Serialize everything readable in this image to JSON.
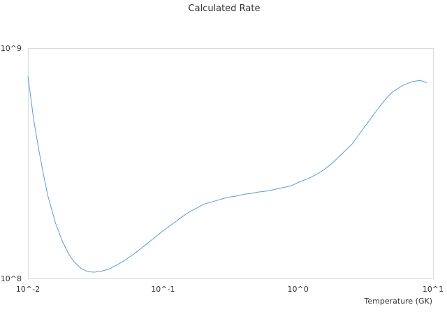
{
  "chart_data": {
    "type": "line",
    "title": "Calculated Rate",
    "xlabel": "Temperature (GK)",
    "ylabel": "",
    "x_scale": "log",
    "y_scale": "log",
    "xlim": [
      0.01,
      10
    ],
    "ylim": [
      100000000,
      1000000000
    ],
    "x_tick_labels": [
      "10^-2",
      "10^-1",
      "10^0",
      "10^1"
    ],
    "y_tick_labels": [
      "10^8",
      "10^9"
    ],
    "grid": false,
    "legend": "none",
    "series": [
      {
        "color": "#5b9bd5",
        "x": [
          0.01,
          0.011,
          0.012,
          0.013,
          0.014,
          0.016,
          0.018,
          0.02,
          0.022,
          0.025,
          0.028,
          0.031,
          0.035,
          0.04,
          0.045,
          0.05,
          0.06,
          0.07,
          0.08,
          0.09,
          0.1,
          0.12,
          0.14,
          0.16,
          0.18,
          0.2,
          0.25,
          0.3,
          0.35,
          0.4,
          0.45,
          0.5,
          0.6,
          0.7,
          0.8,
          0.9,
          1.0,
          1.2,
          1.4,
          1.6,
          1.8,
          2.0,
          2.5,
          3.0,
          3.5,
          4.0,
          4.5,
          5.0,
          6.0,
          7.0,
          8.0,
          9.0
        ],
        "y": [
          755000000,
          495000000,
          365000000,
          285000000,
          230000000,
          174000000,
          145000000,
          128000000,
          118000000,
          110000000,
          107000000,
          106500000,
          107500000,
          110000000,
          114000000,
          118000000,
          127000000,
          136000000,
          145000000,
          153000000,
          161000000,
          174000000,
          186000000,
          196000000,
          203000000,
          210000000,
          218000000,
          225000000,
          228000000,
          232000000,
          234000000,
          237000000,
          240000000,
          245000000,
          249000000,
          253000000,
          261000000,
          272000000,
          285000000,
          300000000,
          317000000,
          337000000,
          382000000,
          442000000,
          500000000,
          555000000,
          605000000,
          645000000,
          690000000,
          715000000,
          725000000,
          708000000
        ]
      }
    ]
  }
}
